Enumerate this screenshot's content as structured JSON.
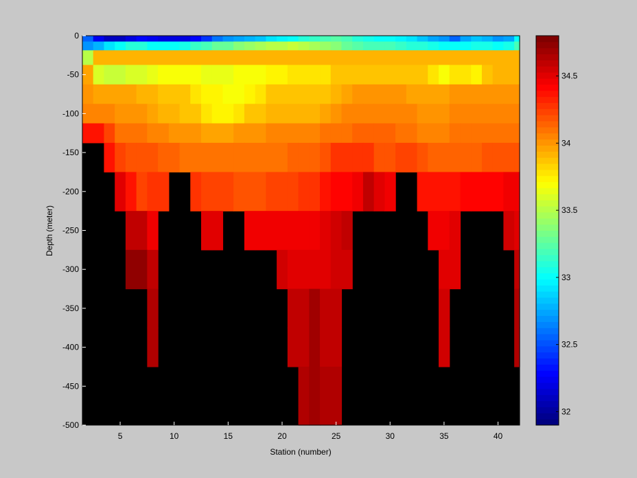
{
  "chart_data": {
    "type": "heatmap",
    "title": "",
    "xlabel": "Station (number)",
    "ylabel": "Depth (meter)",
    "xlim": [
      1.5,
      42
    ],
    "ylim": [
      -500,
      0
    ],
    "xticks": [
      5,
      10,
      15,
      20,
      25,
      30,
      35,
      40
    ],
    "yticks": [
      0,
      -50,
      -100,
      -150,
      -200,
      -250,
      -300,
      -350,
      -400,
      -450,
      -500
    ],
    "colorbar": {
      "label": "",
      "range": [
        31.9,
        34.8
      ],
      "ticks": [
        32,
        32.5,
        33,
        33.5,
        34,
        34.5
      ],
      "colormap": "jet"
    },
    "nan_color": "#000000",
    "stations": [
      2,
      3,
      4,
      5,
      6,
      7,
      8,
      9,
      10,
      11,
      12,
      13,
      14,
      15,
      16,
      17,
      18,
      19,
      20,
      21,
      22,
      23,
      24,
      25,
      26,
      27,
      28,
      29,
      30,
      31,
      32,
      33,
      34,
      35,
      36,
      37,
      38,
      39,
      40,
      41,
      42
    ],
    "depths": [
      -2.5,
      -12.5,
      -25,
      -50,
      -75,
      -100,
      -125,
      -150,
      -200,
      -250,
      -300,
      -350,
      -400,
      -450,
      -500
    ],
    "salinity": [
      [
        32.55,
        32.25,
        32.1,
        32.1,
        32.2,
        32.3,
        32.25,
        32.2,
        32.2,
        32.2,
        32.3,
        32.4,
        32.6,
        32.7,
        32.75,
        32.8,
        32.85,
        32.9,
        32.95,
        33.0,
        33.1,
        33.15,
        33.2,
        33.25,
        33.2,
        33.1,
        33.05,
        33.0,
        33.0,
        32.95,
        32.9,
        32.85,
        32.75,
        32.7,
        32.55,
        32.75,
        32.85,
        32.8,
        32.7,
        32.75,
        33.0
      ],
      [
        32.7,
        32.8,
        32.9,
        33.0,
        33.1,
        33.1,
        33.0,
        33.0,
        33.0,
        33.05,
        33.15,
        33.2,
        33.3,
        33.3,
        33.35,
        33.4,
        33.45,
        33.5,
        33.5,
        33.55,
        33.5,
        33.45,
        33.4,
        33.35,
        33.3,
        33.25,
        33.2,
        33.2,
        33.2,
        33.15,
        33.1,
        33.1,
        33.05,
        33.0,
        33.0,
        33.0,
        33.05,
        33.05,
        33.0,
        33.05,
        33.2
      ],
      [
        33.5,
        33.9,
        33.9,
        33.9,
        33.9,
        33.9,
        33.9,
        33.9,
        33.9,
        33.9,
        33.9,
        33.9,
        33.9,
        33.9,
        33.9,
        33.9,
        33.9,
        33.9,
        33.9,
        33.9,
        33.9,
        33.9,
        33.9,
        33.9,
        33.9,
        33.9,
        33.9,
        33.9,
        33.9,
        33.9,
        33.9,
        33.9,
        33.9,
        33.9,
        33.9,
        33.9,
        33.9,
        33.9,
        33.9,
        33.9,
        33.9
      ],
      [
        33.95,
        33.6,
        33.55,
        33.55,
        33.6,
        33.6,
        33.65,
        33.7,
        33.7,
        33.7,
        33.7,
        33.65,
        33.65,
        33.65,
        33.7,
        33.7,
        33.7,
        33.75,
        33.75,
        33.8,
        33.8,
        33.8,
        33.8,
        33.85,
        33.85,
        33.85,
        33.85,
        33.85,
        33.85,
        33.85,
        33.85,
        33.85,
        33.8,
        33.7,
        33.8,
        33.8,
        33.75,
        33.85,
        33.9,
        33.9,
        33.9
      ],
      [
        34.0,
        33.95,
        33.95,
        33.95,
        33.95,
        33.9,
        33.9,
        33.85,
        33.85,
        33.85,
        33.8,
        33.75,
        33.75,
        33.7,
        33.7,
        33.75,
        33.8,
        33.85,
        33.85,
        33.85,
        33.85,
        33.85,
        33.85,
        33.9,
        33.95,
        34.0,
        34.0,
        34.0,
        34.0,
        34.0,
        33.95,
        33.95,
        33.95,
        33.95,
        34.0,
        34.0,
        34.0,
        34.0,
        34.0,
        34.0,
        34.0
      ],
      [
        34.05,
        34.05,
        34.05,
        34.0,
        34.0,
        34.0,
        33.95,
        33.9,
        33.9,
        33.85,
        33.85,
        33.8,
        33.75,
        33.75,
        33.8,
        33.85,
        33.85,
        33.9,
        33.9,
        33.9,
        33.9,
        33.9,
        33.95,
        34.0,
        34.05,
        34.05,
        34.05,
        34.05,
        34.05,
        34.05,
        34.05,
        34.0,
        34.0,
        34.0,
        34.05,
        34.05,
        34.05,
        34.05,
        34.05,
        34.05,
        34.05
      ],
      [
        34.35,
        34.35,
        34.25,
        34.1,
        34.1,
        34.1,
        34.05,
        34.05,
        34.0,
        34.0,
        34.0,
        33.95,
        33.95,
        33.95,
        34.0,
        34.0,
        34.0,
        34.05,
        34.05,
        34.05,
        34.05,
        34.05,
        34.1,
        34.1,
        34.1,
        34.15,
        34.15,
        34.15,
        34.15,
        34.1,
        34.1,
        34.05,
        34.05,
        34.05,
        34.1,
        34.1,
        34.1,
        34.1,
        34.1,
        34.1,
        34.1
      ],
      [
        null,
        null,
        34.35,
        34.25,
        34.2,
        34.2,
        34.2,
        34.15,
        34.15,
        34.1,
        34.1,
        34.1,
        34.1,
        34.1,
        34.1,
        34.1,
        34.1,
        34.1,
        34.1,
        34.15,
        34.15,
        34.15,
        34.2,
        34.3,
        34.3,
        34.3,
        34.3,
        34.2,
        34.2,
        34.25,
        34.25,
        34.2,
        34.15,
        34.15,
        34.15,
        34.15,
        34.15,
        34.2,
        34.2,
        34.2,
        34.2
      ],
      [
        null,
        null,
        null,
        34.5,
        34.35,
        34.25,
        34.3,
        34.3,
        null,
        null,
        34.3,
        34.25,
        34.25,
        34.25,
        34.2,
        34.2,
        34.2,
        34.25,
        34.25,
        34.25,
        34.3,
        34.3,
        34.35,
        34.4,
        34.4,
        34.45,
        34.6,
        34.5,
        34.45,
        null,
        null,
        34.35,
        34.35,
        34.35,
        34.35,
        34.4,
        34.4,
        34.4,
        34.4,
        34.45,
        34.45
      ],
      [
        null,
        null,
        null,
        null,
        34.6,
        34.6,
        34.45,
        null,
        null,
        null,
        null,
        34.5,
        34.5,
        null,
        null,
        34.45,
        34.45,
        34.45,
        34.45,
        34.45,
        34.45,
        34.45,
        34.5,
        34.55,
        34.6,
        null,
        null,
        null,
        null,
        null,
        null,
        null,
        34.45,
        34.45,
        34.5,
        null,
        null,
        null,
        null,
        34.55,
        34.5
      ],
      [
        null,
        null,
        null,
        null,
        34.75,
        34.75,
        34.6,
        null,
        null,
        null,
        null,
        null,
        null,
        null,
        null,
        null,
        null,
        null,
        34.55,
        34.5,
        34.5,
        34.5,
        34.5,
        34.55,
        34.55,
        null,
        null,
        null,
        null,
        null,
        null,
        null,
        null,
        34.5,
        34.5,
        null,
        null,
        null,
        null,
        null,
        34.6
      ],
      [
        null,
        null,
        null,
        null,
        null,
        null,
        34.65,
        null,
        null,
        null,
        null,
        null,
        null,
        null,
        null,
        null,
        null,
        null,
        null,
        34.6,
        34.6,
        34.7,
        34.6,
        34.6,
        null,
        null,
        null,
        null,
        null,
        null,
        null,
        null,
        null,
        34.55,
        null,
        null,
        null,
        null,
        null,
        null,
        34.65
      ],
      [
        null,
        null,
        null,
        null,
        null,
        null,
        34.65,
        null,
        null,
        null,
        null,
        null,
        null,
        null,
        null,
        null,
        null,
        null,
        null,
        34.6,
        34.6,
        34.7,
        34.6,
        34.6,
        null,
        null,
        null,
        null,
        null,
        null,
        null,
        null,
        null,
        34.55,
        null,
        null,
        null,
        null,
        null,
        null,
        34.65
      ],
      [
        null,
        null,
        null,
        null,
        null,
        null,
        null,
        null,
        null,
        null,
        null,
        null,
        null,
        null,
        null,
        null,
        null,
        null,
        null,
        null,
        34.65,
        34.7,
        34.65,
        34.65,
        null,
        null,
        null,
        null,
        null,
        null,
        null,
        null,
        null,
        null,
        null,
        null,
        null,
        null,
        null,
        null,
        null
      ],
      [
        null,
        null,
        null,
        null,
        null,
        null,
        null,
        null,
        null,
        null,
        null,
        null,
        null,
        null,
        null,
        null,
        null,
        null,
        null,
        null,
        34.65,
        34.7,
        34.65,
        34.65,
        null,
        null,
        null,
        null,
        null,
        null,
        null,
        null,
        null,
        null,
        null,
        null,
        null,
        null,
        null,
        null,
        null
      ]
    ]
  }
}
